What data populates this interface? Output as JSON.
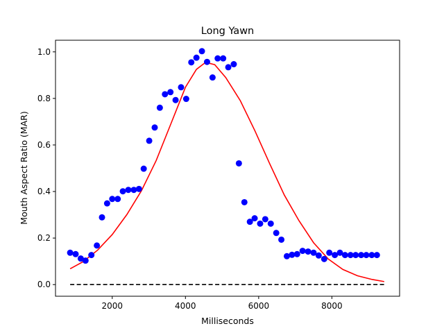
{
  "chart_data": {
    "type": "scatter",
    "title": "Long Yawn",
    "xlabel": "Milliseconds",
    "ylabel": "Mouth Aspect Ratio (MAR)",
    "xlim": [
      450,
      9850
    ],
    "ylim": [
      -0.05,
      1.05
    ],
    "xticks": [
      2000,
      4000,
      6000,
      8000
    ],
    "yticks": [
      0.0,
      0.2,
      0.4,
      0.6,
      0.8,
      1.0
    ],
    "xtick_labels": [
      "2000",
      "4000",
      "6000",
      "8000"
    ],
    "ytick_labels": [
      "0.0",
      "0.2",
      "0.4",
      "0.6",
      "0.8",
      "1.0"
    ],
    "grid": false,
    "legend": "none",
    "series": [
      {
        "type": "scatter",
        "color": "#0000ff",
        "x": [
          850,
          1000,
          1140,
          1270,
          1430,
          1580,
          1720,
          1860,
          2000,
          2150,
          2290,
          2440,
          2590,
          2730,
          2860,
          3010,
          3160,
          3300,
          3440,
          3590,
          3730,
          3880,
          4020,
          4160,
          4300,
          4450,
          4590,
          4740,
          4880,
          5030,
          5170,
          5320,
          5460,
          5610,
          5760,
          5890,
          6040,
          6180,
          6330,
          6480,
          6620,
          6770,
          6910,
          7050,
          7200,
          7350,
          7500,
          7640,
          7790,
          7930,
          8080,
          8220,
          8360,
          8510,
          8650,
          8800,
          8940,
          9090,
          9230
        ],
        "y": [
          0.137,
          0.131,
          0.112,
          0.103,
          0.127,
          0.168,
          0.289,
          0.349,
          0.368,
          0.368,
          0.401,
          0.407,
          0.407,
          0.411,
          0.498,
          0.618,
          0.675,
          0.76,
          0.818,
          0.827,
          0.793,
          0.848,
          0.798,
          0.955,
          0.975,
          1.003,
          0.957,
          0.89,
          0.972,
          0.972,
          0.934,
          0.947,
          0.521,
          0.354,
          0.27,
          0.285,
          0.262,
          0.281,
          0.262,
          0.222,
          0.193,
          0.122,
          0.128,
          0.131,
          0.145,
          0.142,
          0.137,
          0.125,
          0.11,
          0.137,
          0.127,
          0.137,
          0.127,
          0.127,
          0.127,
          0.127,
          0.127,
          0.127,
          0.127
        ]
      },
      {
        "type": "line",
        "color": "#ff0000",
        "x": [
          850,
          1200,
          1600,
          2000,
          2400,
          2800,
          3200,
          3600,
          4000,
          4300,
          4550,
          4800,
          5100,
          5500,
          5900,
          6300,
          6700,
          7100,
          7500,
          7900,
          8300,
          8700,
          9100,
          9430
        ],
        "y": [
          0.068,
          0.098,
          0.148,
          0.215,
          0.301,
          0.404,
          0.533,
          0.69,
          0.848,
          0.925,
          0.955,
          0.945,
          0.89,
          0.79,
          0.66,
          0.52,
          0.385,
          0.275,
          0.18,
          0.11,
          0.065,
          0.038,
          0.022,
          0.013
        ]
      },
      {
        "type": "line",
        "color": "#000000",
        "dash": "dashed",
        "x": [
          850,
          9430
        ],
        "y": [
          0.0,
          0.0
        ]
      }
    ]
  }
}
